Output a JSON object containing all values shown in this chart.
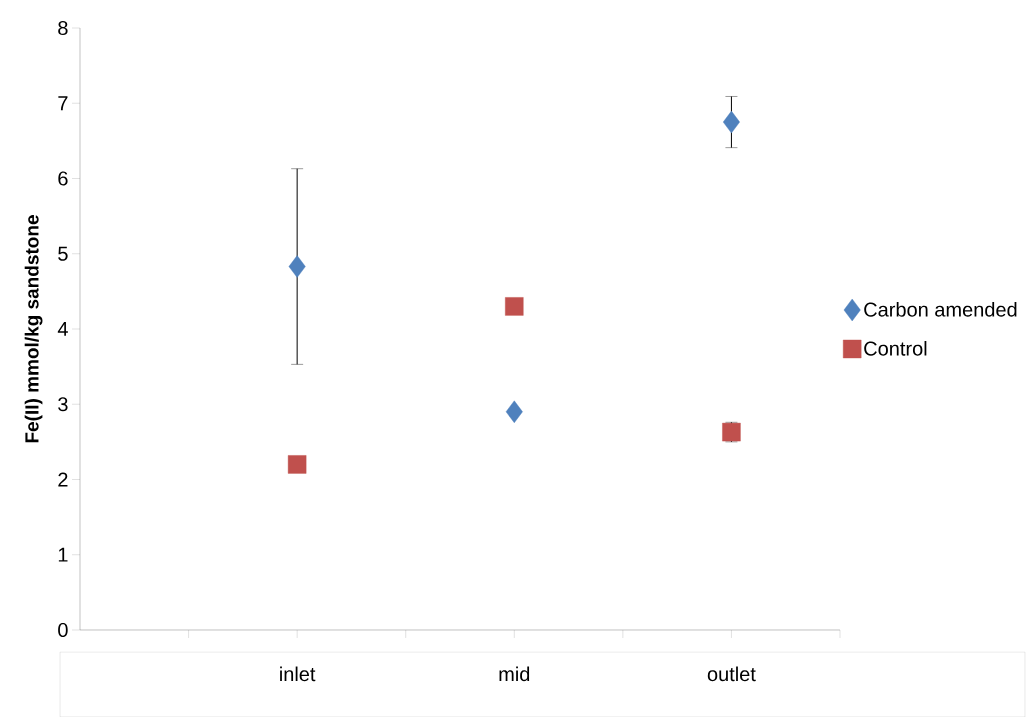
{
  "chart_data": {
    "type": "scatter",
    "ylabel": "Fe(II) mmol/kg sandstone",
    "categories": [
      "inlet",
      "mid",
      "outlet"
    ],
    "series": [
      {
        "name": "Carbon amended",
        "color": "#4f81bd",
        "marker": "diamond",
        "values": [
          4.83,
          2.9,
          6.75
        ],
        "errors": [
          1.3,
          null,
          0.34
        ]
      },
      {
        "name": "Control",
        "color": "#c0504d",
        "marker": "square",
        "values": [
          2.2,
          4.3,
          2.63
        ],
        "errors": [
          null,
          null,
          0.13
        ]
      }
    ],
    "ylim": [
      0,
      8
    ],
    "yticks": [
      0,
      1,
      2,
      3,
      4,
      5,
      6,
      7,
      8
    ],
    "grid": false,
    "legend": "right"
  }
}
